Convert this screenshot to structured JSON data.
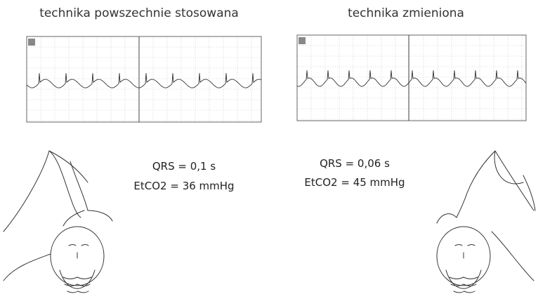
{
  "left": {
    "title": "technika powszechnie stosowana",
    "qrs": "QRS = 0,1 s",
    "etco2": "EtCO2 = 36 mmHg"
  },
  "right": {
    "title": "technika zmieniona",
    "qrs": "QRS = 0,06 s",
    "etco2": "EtCO2 = 45 mmHg"
  }
}
